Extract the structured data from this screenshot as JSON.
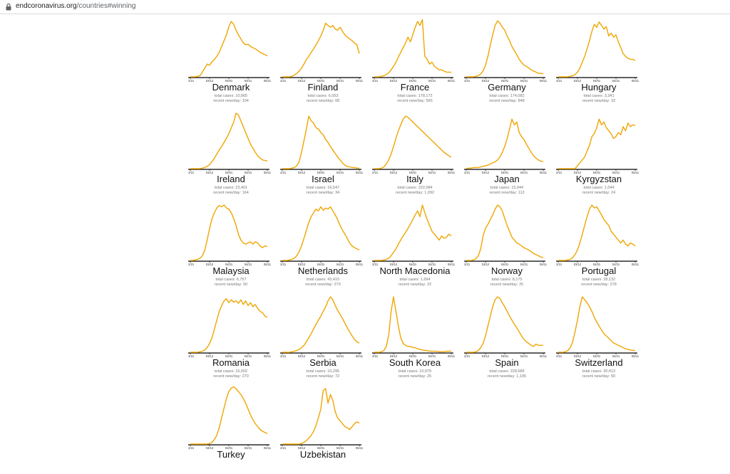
{
  "browser": {
    "url_host": "endcoronavirus.org",
    "url_path": "/countries#winning",
    "lock_icon": "lock-icon"
  },
  "chart_data": {
    "type": "line",
    "line_color": "#f0a500",
    "x_ticks": [
      "02/21",
      "03/12",
      "04/01",
      "04/21",
      "05/11"
    ],
    "total_label": "total cases: ",
    "recent_label": "recent new/day: ",
    "countries": [
      {
        "name": "Denmark",
        "total": "10,865",
        "recent": "104",
        "values": [
          0,
          0,
          0,
          1,
          2,
          8,
          15,
          22,
          20,
          26,
          30,
          35,
          42,
          52,
          62,
          72,
          86,
          95,
          90,
          80,
          72,
          65,
          58,
          55,
          56,
          52,
          50,
          48,
          45,
          42,
          40,
          38,
          36
        ]
      },
      {
        "name": "Finland",
        "total": "6,053",
        "recent": "68",
        "values": [
          0,
          0,
          0,
          0,
          1,
          3,
          6,
          10,
          15,
          22,
          30,
          35,
          42,
          48,
          55,
          62,
          70,
          80,
          92,
          88,
          85,
          88,
          82,
          80,
          85,
          78,
          72,
          68,
          65,
          62,
          58,
          55,
          40
        ]
      },
      {
        "name": "France",
        "total": "178,172",
        "recent": "565",
        "values": [
          0,
          0,
          0,
          1,
          2,
          4,
          7,
          12,
          18,
          25,
          34,
          42,
          50,
          58,
          68,
          60,
          72,
          85,
          95,
          88,
          98,
          35,
          30,
          22,
          25,
          18,
          15,
          12,
          12,
          10,
          8,
          8,
          8
        ]
      },
      {
        "name": "Germany",
        "total": "174,082",
        "recent": "848",
        "values": [
          0,
          0,
          0,
          0,
          1,
          2,
          5,
          10,
          20,
          35,
          55,
          72,
          88,
          96,
          92,
          85,
          80,
          70,
          62,
          52,
          45,
          38,
          30,
          25,
          20,
          18,
          15,
          12,
          10,
          8,
          6,
          6,
          5
        ]
      },
      {
        "name": "Hungary",
        "total": "3,341",
        "recent": "32",
        "values": [
          0,
          0,
          0,
          0,
          0,
          1,
          2,
          4,
          8,
          15,
          25,
          35,
          48,
          62,
          78,
          90,
          85,
          94,
          88,
          82,
          86,
          70,
          75,
          68,
          72,
          60,
          50,
          40,
          35,
          32,
          30,
          30,
          28
        ]
      },
      {
        "name": "Ireland",
        "total": "23,401",
        "recent": "164",
        "values": [
          0,
          0,
          0,
          0,
          0,
          1,
          2,
          4,
          7,
          12,
          18,
          25,
          32,
          38,
          45,
          52,
          60,
          70,
          80,
          95,
          92,
          82,
          72,
          62,
          52,
          42,
          35,
          28,
          22,
          18,
          15,
          14,
          13
        ]
      },
      {
        "name": "Israel",
        "total": "16,547",
        "recent": "34",
        "values": [
          0,
          0,
          0,
          0,
          1,
          2,
          5,
          12,
          28,
          48,
          68,
          90,
          82,
          78,
          70,
          68,
          62,
          58,
          50,
          45,
          38,
          32,
          26,
          20,
          15,
          10,
          6,
          4,
          3,
          2,
          2,
          1,
          1
        ]
      },
      {
        "name": "Italy",
        "total": "222,084",
        "recent": "1,092",
        "values": [
          0,
          0,
          0,
          1,
          3,
          8,
          15,
          25,
          38,
          52,
          65,
          75,
          85,
          90,
          88,
          84,
          80,
          76,
          72,
          68,
          64,
          60,
          56,
          52,
          48,
          44,
          40,
          36,
          32,
          28,
          25,
          22,
          20
        ]
      },
      {
        "name": "Japan",
        "total": "15,944",
        "recent": "113",
        "values": [
          0,
          1,
          1,
          2,
          2,
          2,
          3,
          4,
          5,
          6,
          8,
          10,
          12,
          15,
          20,
          28,
          38,
          52,
          68,
          85,
          75,
          80,
          62,
          55,
          50,
          42,
          35,
          28,
          22,
          18,
          15,
          13,
          12
        ]
      },
      {
        "name": "Kyrgyzstan",
        "total": "1,044",
        "recent": "24",
        "values": [
          0,
          0,
          0,
          0,
          0,
          0,
          0,
          0,
          5,
          10,
          15,
          20,
          30,
          40,
          55,
          60,
          70,
          85,
          75,
          80,
          70,
          65,
          60,
          52,
          55,
          62,
          58,
          72,
          65,
          78,
          72,
          75,
          74
        ]
      },
      {
        "name": "Malaysia",
        "total": "6,757",
        "recent": "50",
        "values": [
          0,
          0,
          1,
          2,
          4,
          8,
          18,
          35,
          55,
          72,
          82,
          90,
          94,
          92,
          95,
          90,
          88,
          82,
          72,
          60,
          45,
          35,
          30,
          28,
          30,
          32,
          28,
          32,
          30,
          25,
          22,
          25,
          24
        ]
      },
      {
        "name": "Netherlands",
        "total": "43,410",
        "recent": "270",
        "values": [
          0,
          0,
          0,
          1,
          2,
          4,
          8,
          15,
          25,
          38,
          52,
          65,
          75,
          82,
          88,
          85,
          92,
          86,
          90,
          88,
          92,
          85,
          78,
          70,
          60,
          52,
          45,
          38,
          30,
          25,
          22,
          20,
          18
        ]
      },
      {
        "name": "North Macedonia",
        "total": "1,694",
        "recent": "22",
        "values": [
          0,
          0,
          0,
          0,
          1,
          2,
          4,
          8,
          14,
          20,
          28,
          35,
          42,
          48,
          55,
          62,
          70,
          78,
          85,
          75,
          95,
          82,
          70,
          60,
          50,
          45,
          40,
          35,
          42,
          38,
          40,
          45,
          42
        ]
      },
      {
        "name": "Norway",
        "total": "8,175",
        "recent": "25",
        "values": [
          0,
          0,
          0,
          1,
          3,
          8,
          20,
          42,
          55,
          62,
          70,
          78,
          88,
          95,
          92,
          85,
          72,
          60,
          50,
          40,
          35,
          30,
          28,
          25,
          22,
          20,
          18,
          15,
          12,
          10,
          8,
          6,
          5
        ]
      },
      {
        "name": "Portugal",
        "total": "28,132",
        "recent": "278",
        "values": [
          0,
          0,
          0,
          0,
          1,
          2,
          5,
          10,
          18,
          30,
          45,
          60,
          75,
          88,
          95,
          90,
          92,
          85,
          78,
          70,
          65,
          60,
          50,
          45,
          40,
          35,
          30,
          35,
          28,
          25,
          30,
          28,
          25
        ]
      },
      {
        "name": "Romania",
        "total": "16,002",
        "recent": "270",
        "values": [
          0,
          0,
          0,
          0,
          1,
          2,
          4,
          8,
          15,
          25,
          40,
          55,
          70,
          80,
          88,
          92,
          85,
          90,
          86,
          88,
          84,
          90,
          82,
          88,
          80,
          85,
          78,
          82,
          75,
          70,
          68,
          62,
          60
        ]
      },
      {
        "name": "Serbia",
        "total": "10,295",
        "recent": "72",
        "values": [
          0,
          0,
          0,
          0,
          1,
          2,
          3,
          5,
          8,
          12,
          18,
          25,
          32,
          40,
          48,
          55,
          62,
          70,
          78,
          88,
          95,
          90,
          80,
          72,
          65,
          58,
          50,
          42,
          35,
          28,
          22,
          18,
          16
        ]
      },
      {
        "name": "South Korea",
        "total": "10,979",
        "recent": "25",
        "values": [
          0,
          0,
          0,
          1,
          3,
          10,
          30,
          70,
          95,
          70,
          45,
          25,
          15,
          12,
          10,
          10,
          8,
          8,
          6,
          5,
          4,
          3,
          3,
          2,
          2,
          2,
          2,
          1,
          1,
          1,
          2,
          2,
          2
        ]
      },
      {
        "name": "Spain",
        "total": "228,689",
        "recent": "1,195",
        "values": [
          0,
          0,
          0,
          0,
          1,
          3,
          8,
          15,
          28,
          45,
          62,
          78,
          90,
          95,
          92,
          85,
          78,
          70,
          62,
          55,
          48,
          42,
          35,
          28,
          22,
          18,
          15,
          12,
          10,
          14,
          12,
          12,
          12
        ]
      },
      {
        "name": "Switzerland",
        "total": "30,413",
        "recent": "50",
        "values": [
          0,
          0,
          0,
          1,
          3,
          8,
          18,
          35,
          55,
          78,
          95,
          90,
          85,
          78,
          70,
          60,
          52,
          45,
          38,
          32,
          28,
          24,
          20,
          16,
          14,
          12,
          10,
          8,
          6,
          5,
          4,
          3,
          3
        ]
      },
      {
        "name": "Turkey",
        "total": "",
        "recent": "",
        "values": [
          0,
          0,
          0,
          0,
          0,
          0,
          0,
          0,
          1,
          3,
          8,
          15,
          28,
          45,
          62,
          78,
          90,
          96,
          98,
          95,
          90,
          85,
          78,
          70,
          60,
          50,
          42,
          35,
          30,
          25,
          22,
          20,
          18
        ]
      },
      {
        "name": "Uzbekistan",
        "total": "",
        "recent": "",
        "values": [
          0,
          0,
          0,
          0,
          0,
          0,
          0,
          0,
          1,
          3,
          6,
          10,
          15,
          22,
          32,
          45,
          60,
          92,
          95,
          70,
          85,
          75,
          55,
          45,
          40,
          35,
          30,
          28,
          25,
          30,
          35,
          38,
          36
        ]
      }
    ]
  }
}
